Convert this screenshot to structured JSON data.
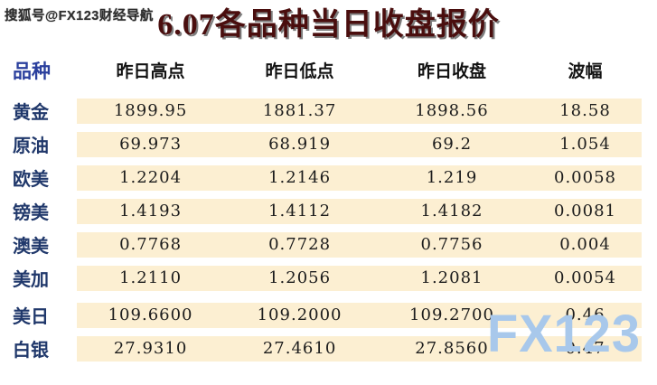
{
  "watermark_top": "搜狐号@FX123财经导航",
  "watermark_bottom": "FX123",
  "title": "6.07各品种当日收盘报价",
  "chart_data": {
    "type": "table",
    "title": "6.07各品种当日收盘报价",
    "columns": [
      "品种",
      "昨日高点",
      "昨日低点",
      "昨日收盘",
      "波幅"
    ],
    "rows": [
      [
        "黄金",
        "1899.95",
        "1881.37",
        "1898.56",
        "18.58"
      ],
      [
        "原油",
        "69.973",
        "68.919",
        "69.2",
        "1.054"
      ],
      [
        "欧美",
        "1.2204",
        "1.2146",
        "1.219",
        "0.0058"
      ],
      [
        "镑美",
        "1.4193",
        "1.4112",
        "1.4182",
        "0.0081"
      ],
      [
        "澳美",
        "0.7768",
        "0.7728",
        "0.7756",
        "0.004"
      ],
      [
        "美加",
        "1.2110",
        "1.2056",
        "1.2081",
        "0.0054"
      ],
      [
        "美日",
        "109.6600",
        "109.2000",
        "109.2700",
        "0.46"
      ],
      [
        "白银",
        "27.9310",
        "27.4610",
        "27.8560",
        "0.47"
      ]
    ],
    "layout_hints": {
      "row_band_background": "#fcefd2",
      "label_column_background": "#ffffff",
      "grid": "off",
      "section_break_before_row": 6
    }
  },
  "colors": {
    "title_color": "#4a0e0e",
    "label_blue": "#20386b",
    "header_blue": "#2a3f9d",
    "row_band_cream": "#fcefd2",
    "watermark_blue": "#a8c8eb",
    "number_black": "#1c1c1c"
  }
}
